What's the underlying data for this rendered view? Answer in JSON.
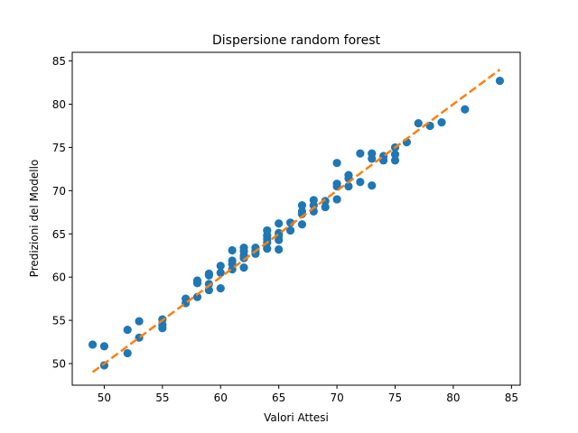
{
  "chart_data": {
    "type": "scatter",
    "title": "Dispersione random forest",
    "xlabel": "Valori Attesi",
    "ylabel": "Predizioni del Modello",
    "xlim": [
      47.25,
      85.75
    ],
    "ylim": [
      47.5,
      86.0
    ],
    "xticks": [
      50,
      55,
      60,
      65,
      70,
      75,
      80,
      85
    ],
    "yticks": [
      50,
      55,
      60,
      65,
      70,
      75,
      80,
      85
    ],
    "grid": false,
    "series": [
      {
        "type": "scatter",
        "color": "#1f77b4",
        "points": [
          [
            49,
            52.2
          ],
          [
            50,
            52.0
          ],
          [
            50,
            49.8
          ],
          [
            52,
            53.9
          ],
          [
            52,
            51.2
          ],
          [
            53,
            54.9
          ],
          [
            53,
            53.0
          ],
          [
            55,
            55.1
          ],
          [
            55,
            54.5
          ],
          [
            55,
            54.1
          ],
          [
            57,
            57.0
          ],
          [
            57,
            57.5
          ],
          [
            58,
            57.7
          ],
          [
            58,
            59.3
          ],
          [
            58,
            59.6
          ],
          [
            59,
            58.5
          ],
          [
            59,
            59.2
          ],
          [
            59,
            60.2
          ],
          [
            59,
            60.4
          ],
          [
            60,
            58.7
          ],
          [
            60,
            60.5
          ],
          [
            60,
            61.3
          ],
          [
            61,
            60.9
          ],
          [
            61,
            61.5
          ],
          [
            61,
            61.9
          ],
          [
            61,
            63.1
          ],
          [
            62,
            61.1
          ],
          [
            62,
            62.2
          ],
          [
            62,
            62.5
          ],
          [
            62,
            63.0
          ],
          [
            62,
            63.4
          ],
          [
            63,
            62.7
          ],
          [
            63,
            63.0
          ],
          [
            63,
            63.4
          ],
          [
            64,
            63.3
          ],
          [
            64,
            64.0
          ],
          [
            64,
            64.4
          ],
          [
            64,
            64.8
          ],
          [
            64,
            65.4
          ],
          [
            65,
            63.2
          ],
          [
            65,
            64.3
          ],
          [
            65,
            64.8
          ],
          [
            65,
            65.1
          ],
          [
            65,
            66.2
          ],
          [
            66,
            65.4
          ],
          [
            66,
            66.3
          ],
          [
            67,
            66.1
          ],
          [
            67,
            67.3
          ],
          [
            67,
            67.6
          ],
          [
            67,
            68.3
          ],
          [
            68,
            67.6
          ],
          [
            68,
            68.3
          ],
          [
            68,
            68.9
          ],
          [
            69,
            68.1
          ],
          [
            69,
            68.8
          ],
          [
            70,
            69.0
          ],
          [
            70,
            70.5
          ],
          [
            70,
            70.8
          ],
          [
            70,
            73.2
          ],
          [
            71,
            70.5
          ],
          [
            71,
            71.4
          ],
          [
            71,
            71.8
          ],
          [
            72,
            71.0
          ],
          [
            72,
            74.3
          ],
          [
            73,
            70.6
          ],
          [
            73,
            73.7
          ],
          [
            73,
            74.3
          ],
          [
            74,
            73.5
          ],
          [
            74,
            74.0
          ],
          [
            75,
            73.5
          ],
          [
            75,
            74.2
          ],
          [
            75,
            75.0
          ],
          [
            76,
            75.6
          ],
          [
            77,
            77.8
          ],
          [
            78,
            77.5
          ],
          [
            79,
            77.9
          ],
          [
            81,
            79.4
          ],
          [
            84,
            82.7
          ]
        ]
      },
      {
        "type": "line",
        "style": "dashed",
        "color": "#ff7f0e",
        "points": [
          [
            49,
            49
          ],
          [
            84,
            84
          ]
        ]
      }
    ]
  }
}
